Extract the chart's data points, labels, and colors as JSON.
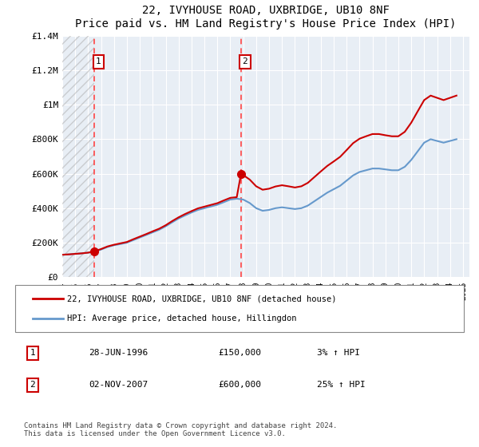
{
  "title": "22, IVYHOUSE ROAD, UXBRIDGE, UB10 8NF",
  "subtitle": "Price paid vs. HM Land Registry's House Price Index (HPI)",
  "ylim": [
    0,
    1400000
  ],
  "yticks": [
    0,
    200000,
    400000,
    600000,
    800000,
    1000000,
    1200000,
    1400000
  ],
  "ytick_labels": [
    "£0",
    "£200K",
    "£400K",
    "£600K",
    "£800K",
    "£1M",
    "£1.2M",
    "£1.4M"
  ],
  "xlim_start": 1994.0,
  "xlim_end": 2025.5,
  "xticks": [
    1994,
    1995,
    1996,
    1997,
    1998,
    1999,
    2000,
    2001,
    2002,
    2003,
    2004,
    2005,
    2006,
    2007,
    2008,
    2009,
    2010,
    2011,
    2012,
    2013,
    2014,
    2015,
    2016,
    2017,
    2018,
    2019,
    2020,
    2021,
    2022,
    2023,
    2024,
    2025
  ],
  "transaction1_x": 1996.5,
  "transaction1_y": 150000,
  "transaction1_label": "1",
  "transaction1_date": "28-JUN-1996",
  "transaction1_price": "£150,000",
  "transaction1_hpi": "3% ↑ HPI",
  "transaction2_x": 2007.83,
  "transaction2_y": 600000,
  "transaction2_label": "2",
  "transaction2_date": "02-NOV-2007",
  "transaction2_price": "£600,000",
  "transaction2_hpi": "25% ↑ HPI",
  "red_line_color": "#cc0000",
  "blue_line_color": "#6699cc",
  "hatch_color": "#cccccc",
  "vline_color": "#ff4444",
  "background_plot": "#e8eef5",
  "grid_color": "#ffffff",
  "legend_line1": "22, IVYHOUSE ROAD, UXBRIDGE, UB10 8NF (detached house)",
  "legend_line2": "HPI: Average price, detached house, Hillingdon",
  "footer": "Contains HM Land Registry data © Crown copyright and database right 2024.\nThis data is licensed under the Open Government Licence v3.0.",
  "hpi_x": [
    1994.0,
    1994.5,
    1995.0,
    1995.5,
    1996.0,
    1996.5,
    1997.0,
    1997.5,
    1998.0,
    1998.5,
    1999.0,
    1999.5,
    2000.0,
    2000.5,
    2001.0,
    2001.5,
    2002.0,
    2002.5,
    2003.0,
    2003.5,
    2004.0,
    2004.5,
    2005.0,
    2005.5,
    2006.0,
    2006.5,
    2007.0,
    2007.5,
    2008.0,
    2008.5,
    2009.0,
    2009.5,
    2010.0,
    2010.5,
    2011.0,
    2011.5,
    2012.0,
    2012.5,
    2013.0,
    2013.5,
    2014.0,
    2014.5,
    2015.0,
    2015.5,
    2016.0,
    2016.5,
    2017.0,
    2017.5,
    2018.0,
    2018.5,
    2019.0,
    2019.5,
    2020.0,
    2020.5,
    2021.0,
    2021.5,
    2022.0,
    2022.5,
    2023.0,
    2023.5,
    2024.0,
    2024.5
  ],
  "hpi_y": [
    130000,
    132000,
    135000,
    138000,
    142000,
    148000,
    160000,
    175000,
    185000,
    192000,
    200000,
    215000,
    230000,
    245000,
    260000,
    275000,
    295000,
    318000,
    340000,
    358000,
    375000,
    390000,
    400000,
    410000,
    420000,
    435000,
    450000,
    455000,
    450000,
    430000,
    400000,
    385000,
    390000,
    400000,
    405000,
    400000,
    395000,
    400000,
    415000,
    440000,
    465000,
    490000,
    510000,
    530000,
    560000,
    590000,
    610000,
    620000,
    630000,
    630000,
    625000,
    620000,
    620000,
    640000,
    680000,
    730000,
    780000,
    800000,
    790000,
    780000,
    790000,
    800000
  ],
  "red_x": [
    1994.0,
    1994.5,
    1995.0,
    1995.5,
    1996.0,
    1996.5,
    1997.0,
    1997.5,
    1998.0,
    1998.5,
    1999.0,
    1999.5,
    2000.0,
    2000.5,
    2001.0,
    2001.5,
    2002.0,
    2002.5,
    2003.0,
    2003.5,
    2004.0,
    2004.5,
    2005.0,
    2005.5,
    2006.0,
    2006.5,
    2007.0,
    2007.5,
    2007.83,
    2008.0,
    2008.5,
    2009.0,
    2009.5,
    2010.0,
    2010.5,
    2011.0,
    2011.5,
    2012.0,
    2012.5,
    2013.0,
    2013.5,
    2014.0,
    2014.5,
    2015.0,
    2015.5,
    2016.0,
    2016.5,
    2017.0,
    2017.5,
    2018.0,
    2018.5,
    2019.0,
    2019.5,
    2020.0,
    2020.5,
    2021.0,
    2021.5,
    2022.0,
    2022.5,
    2023.0,
    2023.5,
    2024.0,
    2024.5
  ],
  "red_y": [
    130000,
    132000,
    135000,
    138000,
    142000,
    150000,
    163000,
    178000,
    188000,
    196000,
    204000,
    220000,
    235000,
    250000,
    266000,
    281000,
    301000,
    325000,
    347000,
    366000,
    383000,
    399000,
    409000,
    419000,
    429000,
    445000,
    460000,
    464000,
    600000,
    592000,
    566000,
    527000,
    507000,
    513000,
    526000,
    533000,
    527000,
    520000,
    527000,
    547000,
    580000,
    613000,
    645000,
    671000,
    698000,
    737000,
    777000,
    803000,
    817000,
    830000,
    830000,
    823000,
    817000,
    817000,
    843000,
    896000,
    962000,
    1027000,
    1053000,
    1040000,
    1027000,
    1040000,
    1053000
  ]
}
